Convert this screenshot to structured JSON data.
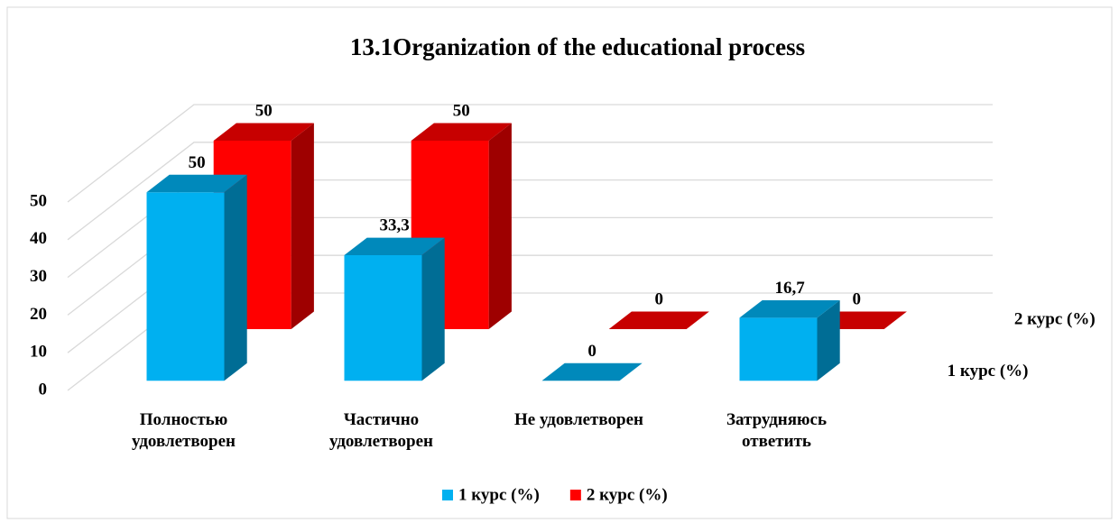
{
  "chart_data": {
    "type": "bar3d",
    "title": "13.1Organization of the educational process",
    "categories": [
      "Полностью удовлетворен",
      "Частично удовлетворен",
      "Не удовлетворен",
      "Затрудняюсь ответить"
    ],
    "series": [
      {
        "name": "1 курс (%)",
        "color": "#00b0f0",
        "values": [
          50,
          33.3,
          0,
          16.7
        ],
        "value_labels": [
          "50",
          "33,3",
          "0",
          "16,7"
        ]
      },
      {
        "name": "2 курс (%)",
        "color": "#ff0000",
        "values": [
          50,
          50,
          0,
          0
        ],
        "value_labels": [
          "50",
          "50",
          "0",
          "0"
        ]
      }
    ],
    "ylim": [
      0,
      50
    ],
    "yticks": [
      0,
      10,
      20,
      30,
      40,
      50
    ],
    "grid": true,
    "legend": "bottom"
  }
}
